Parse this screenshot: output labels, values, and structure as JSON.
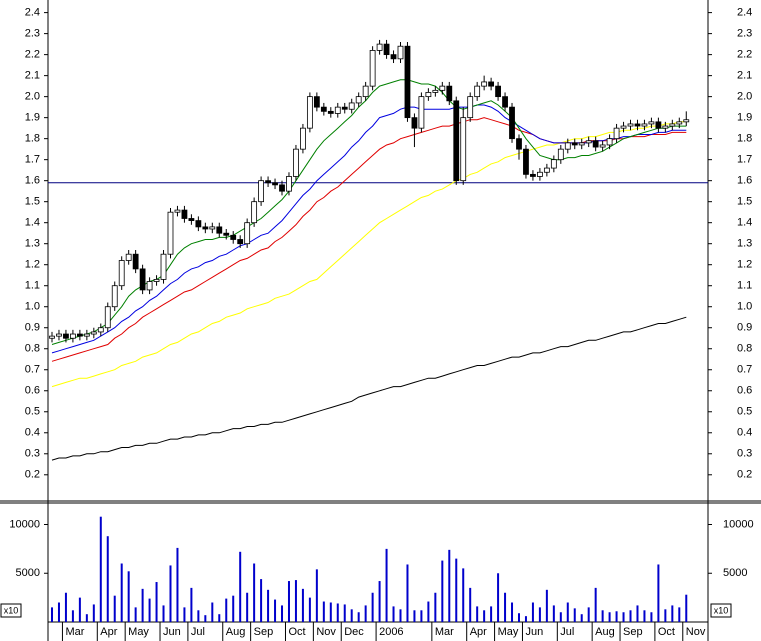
{
  "chart_data": [
    {
      "type": "candlestick",
      "open": [
        0.85,
        0.86,
        0.87,
        0.85,
        0.87,
        0.86,
        0.87,
        0.88,
        0.9,
        1.0,
        1.1,
        1.22,
        1.25,
        1.18,
        1.08,
        1.12,
        1.13,
        1.25,
        1.45,
        1.46,
        1.42,
        1.41,
        1.38,
        1.37,
        1.38,
        1.35,
        1.34,
        1.32,
        1.3,
        1.4,
        1.5,
        1.6,
        1.59,
        1.58,
        1.55,
        1.62,
        1.75,
        1.85,
        2.0,
        1.95,
        1.93,
        1.92,
        1.95,
        1.94,
        1.97,
        2.0,
        2.05,
        2.22,
        2.25,
        2.2,
        2.18,
        2.24,
        1.9,
        1.85,
        2.0,
        2.02,
        2.03,
        2.05,
        1.98,
        1.6,
        1.9,
        2.0,
        2.05,
        2.07,
        2.05,
        2.0,
        1.95,
        1.8,
        1.75,
        1.63,
        1.62,
        1.64,
        1.66,
        1.7,
        1.75,
        1.78,
        1.77,
        1.78,
        1.79,
        1.76,
        1.77,
        1.8,
        1.85,
        1.86,
        1.87,
        1.86,
        1.87,
        1.88,
        1.85,
        1.86,
        1.87,
        1.88
      ],
      "high": [
        0.88,
        0.89,
        0.89,
        0.89,
        0.89,
        0.89,
        0.9,
        0.92,
        1.02,
        1.12,
        1.24,
        1.27,
        1.27,
        1.2,
        1.14,
        1.15,
        1.27,
        1.47,
        1.48,
        1.48,
        1.44,
        1.43,
        1.4,
        1.4,
        1.4,
        1.37,
        1.36,
        1.34,
        1.42,
        1.52,
        1.62,
        1.62,
        1.61,
        1.6,
        1.64,
        1.77,
        1.87,
        2.02,
        2.02,
        1.97,
        1.95,
        1.97,
        1.97,
        1.99,
        2.02,
        2.07,
        2.24,
        2.27,
        2.27,
        2.22,
        2.26,
        2.26,
        1.92,
        2.02,
        2.04,
        2.05,
        2.07,
        2.07,
        2.0,
        1.95,
        2.02,
        2.07,
        2.1,
        2.09,
        2.07,
        2.02,
        1.97,
        1.82,
        1.77,
        1.65,
        1.66,
        1.68,
        1.72,
        1.77,
        1.8,
        1.8,
        1.8,
        1.81,
        1.81,
        1.79,
        1.82,
        1.87,
        1.88,
        1.89,
        1.89,
        1.89,
        1.9,
        1.9,
        1.88,
        1.89,
        1.9,
        1.93
      ],
      "low": [
        0.83,
        0.84,
        0.83,
        0.83,
        0.84,
        0.84,
        0.85,
        0.86,
        0.88,
        0.98,
        1.08,
        1.2,
        1.16,
        1.06,
        1.06,
        1.1,
        1.11,
        1.23,
        1.43,
        1.4,
        1.39,
        1.36,
        1.35,
        1.35,
        1.33,
        1.32,
        1.3,
        1.28,
        1.28,
        1.38,
        1.48,
        1.57,
        1.56,
        1.53,
        1.53,
        1.6,
        1.73,
        1.83,
        1.93,
        1.91,
        1.9,
        1.9,
        1.92,
        1.92,
        1.95,
        1.98,
        2.03,
        2.2,
        2.18,
        2.16,
        2.16,
        1.88,
        1.76,
        1.83,
        1.98,
        2.0,
        2.01,
        1.96,
        1.58,
        1.58,
        1.88,
        1.98,
        2.03,
        2.03,
        1.98,
        1.93,
        1.78,
        1.7,
        1.61,
        1.6,
        1.6,
        1.62,
        1.64,
        1.68,
        1.73,
        1.75,
        1.75,
        1.76,
        1.74,
        1.74,
        1.75,
        1.78,
        1.83,
        1.84,
        1.84,
        1.84,
        1.85,
        1.83,
        1.83,
        1.84,
        1.85,
        1.86
      ],
      "close": [
        0.86,
        0.87,
        0.85,
        0.87,
        0.86,
        0.87,
        0.88,
        0.9,
        1.0,
        1.1,
        1.22,
        1.25,
        1.18,
        1.08,
        1.12,
        1.13,
        1.25,
        1.45,
        1.46,
        1.42,
        1.41,
        1.38,
        1.37,
        1.38,
        1.35,
        1.34,
        1.32,
        1.3,
        1.4,
        1.5,
        1.6,
        1.59,
        1.58,
        1.55,
        1.62,
        1.75,
        1.85,
        2.0,
        1.95,
        1.93,
        1.92,
        1.95,
        1.94,
        1.97,
        2.0,
        2.05,
        2.22,
        2.25,
        2.2,
        2.18,
        2.24,
        1.9,
        1.85,
        2.0,
        2.02,
        2.03,
        2.05,
        1.98,
        1.6,
        1.9,
        2.0,
        2.05,
        2.07,
        2.05,
        2.0,
        1.95,
        1.8,
        1.75,
        1.63,
        1.62,
        1.64,
        1.66,
        1.7,
        1.75,
        1.78,
        1.77,
        1.78,
        1.79,
        1.76,
        1.77,
        1.8,
        1.85,
        1.86,
        1.87,
        1.86,
        1.87,
        1.88,
        1.85,
        1.86,
        1.87,
        1.88,
        1.89
      ],
      "series": [
        {
          "color": "#000000",
          "values": [
            0.27,
            0.28,
            0.28,
            0.29,
            0.29,
            0.3,
            0.3,
            0.31,
            0.31,
            0.32,
            0.33,
            0.33,
            0.34,
            0.34,
            0.35,
            0.35,
            0.36,
            0.37,
            0.37,
            0.38,
            0.38,
            0.39,
            0.39,
            0.4,
            0.4,
            0.41,
            0.42,
            0.42,
            0.43,
            0.43,
            0.44,
            0.44,
            0.45,
            0.45,
            0.46,
            0.47,
            0.48,
            0.49,
            0.5,
            0.51,
            0.52,
            0.53,
            0.54,
            0.55,
            0.57,
            0.58,
            0.59,
            0.6,
            0.61,
            0.62,
            0.62,
            0.63,
            0.64,
            0.65,
            0.66,
            0.66,
            0.67,
            0.68,
            0.69,
            0.7,
            0.71,
            0.72,
            0.72,
            0.73,
            0.74,
            0.75,
            0.76,
            0.76,
            0.77,
            0.78,
            0.78,
            0.79,
            0.8,
            0.81,
            0.81,
            0.82,
            0.83,
            0.84,
            0.84,
            0.85,
            0.86,
            0.87,
            0.88,
            0.88,
            0.89,
            0.9,
            0.91,
            0.92,
            0.92,
            0.93,
            0.94,
            0.95
          ]
        },
        {
          "color": "#ffff00",
          "values": [
            0.62,
            0.63,
            0.64,
            0.65,
            0.66,
            0.66,
            0.67,
            0.68,
            0.69,
            0.7,
            0.72,
            0.73,
            0.74,
            0.76,
            0.77,
            0.78,
            0.8,
            0.82,
            0.83,
            0.85,
            0.87,
            0.88,
            0.9,
            0.92,
            0.93,
            0.95,
            0.96,
            0.97,
            0.99,
            1.0,
            1.01,
            1.02,
            1.04,
            1.05,
            1.06,
            1.08,
            1.1,
            1.12,
            1.13,
            1.16,
            1.19,
            1.22,
            1.25,
            1.28,
            1.31,
            1.34,
            1.37,
            1.4,
            1.42,
            1.44,
            1.46,
            1.48,
            1.5,
            1.52,
            1.53,
            1.55,
            1.56,
            1.58,
            1.6,
            1.61,
            1.63,
            1.64,
            1.66,
            1.68,
            1.69,
            1.71,
            1.72,
            1.73,
            1.74,
            1.75,
            1.76,
            1.77,
            1.77,
            1.78,
            1.79,
            1.8,
            1.8,
            1.81,
            1.81,
            1.82,
            1.83,
            1.83,
            1.84,
            1.84,
            1.85,
            1.85,
            1.86,
            1.86,
            1.87,
            1.87,
            1.88,
            1.88
          ]
        },
        {
          "color": "#e00000",
          "values": [
            0.74,
            0.75,
            0.76,
            0.77,
            0.78,
            0.79,
            0.8,
            0.81,
            0.82,
            0.85,
            0.87,
            0.9,
            0.92,
            0.95,
            0.97,
            0.99,
            1.01,
            1.03,
            1.05,
            1.07,
            1.08,
            1.1,
            1.12,
            1.14,
            1.16,
            1.18,
            1.2,
            1.22,
            1.23,
            1.25,
            1.27,
            1.28,
            1.31,
            1.33,
            1.36,
            1.39,
            1.43,
            1.46,
            1.5,
            1.52,
            1.55,
            1.57,
            1.6,
            1.63,
            1.66,
            1.69,
            1.72,
            1.75,
            1.77,
            1.78,
            1.8,
            1.81,
            1.82,
            1.83,
            1.84,
            1.85,
            1.86,
            1.86,
            1.87,
            1.88,
            1.89,
            1.89,
            1.9,
            1.89,
            1.88,
            1.87,
            1.86,
            1.84,
            1.83,
            1.82,
            1.8,
            1.79,
            1.78,
            1.78,
            1.78,
            1.78,
            1.78,
            1.79,
            1.79,
            1.79,
            1.79,
            1.8,
            1.8,
            1.81,
            1.81,
            1.81,
            1.82,
            1.82,
            1.82,
            1.83,
            1.83,
            1.83
          ]
        },
        {
          "color": "#0000e0",
          "values": [
            0.78,
            0.79,
            0.8,
            0.81,
            0.82,
            0.83,
            0.84,
            0.86,
            0.88,
            0.9,
            0.93,
            0.95,
            0.98,
            1.0,
            1.03,
            1.05,
            1.08,
            1.11,
            1.13,
            1.16,
            1.18,
            1.19,
            1.21,
            1.22,
            1.24,
            1.25,
            1.27,
            1.29,
            1.3,
            1.32,
            1.34,
            1.35,
            1.38,
            1.41,
            1.45,
            1.49,
            1.53,
            1.56,
            1.6,
            1.63,
            1.66,
            1.69,
            1.72,
            1.76,
            1.79,
            1.83,
            1.86,
            1.9,
            1.91,
            1.92,
            1.94,
            1.95,
            1.95,
            1.94,
            1.94,
            1.94,
            1.94,
            1.94,
            1.95,
            1.95,
            1.95,
            1.96,
            1.96,
            1.95,
            1.93,
            1.9,
            1.88,
            1.86,
            1.84,
            1.82,
            1.8,
            1.79,
            1.78,
            1.78,
            1.78,
            1.78,
            1.78,
            1.78,
            1.79,
            1.79,
            1.8,
            1.8,
            1.81,
            1.81,
            1.82,
            1.82,
            1.82,
            1.83,
            1.83,
            1.84,
            1.84,
            1.84
          ]
        },
        {
          "color": "#008000",
          "values": [
            0.82,
            0.83,
            0.84,
            0.85,
            0.86,
            0.87,
            0.88,
            0.9,
            0.92,
            0.96,
            1.0,
            1.05,
            1.08,
            1.1,
            1.12,
            1.13,
            1.15,
            1.2,
            1.25,
            1.28,
            1.3,
            1.31,
            1.32,
            1.32,
            1.33,
            1.33,
            1.34,
            1.36,
            1.38,
            1.4,
            1.42,
            1.45,
            1.48,
            1.51,
            1.55,
            1.6,
            1.65,
            1.7,
            1.75,
            1.79,
            1.82,
            1.85,
            1.88,
            1.91,
            1.95,
            1.98,
            2.02,
            2.05,
            2.06,
            2.07,
            2.08,
            2.08,
            2.07,
            2.06,
            2.06,
            2.05,
            2.02,
            1.98,
            1.95,
            1.94,
            1.95,
            1.96,
            1.97,
            1.98,
            1.96,
            1.93,
            1.9,
            1.85,
            1.8,
            1.76,
            1.72,
            1.71,
            1.7,
            1.7,
            1.71,
            1.71,
            1.72,
            1.72,
            1.73,
            1.74,
            1.76,
            1.78,
            1.8,
            1.81,
            1.82,
            1.83,
            1.84,
            1.85,
            1.85,
            1.86,
            1.86,
            1.86
          ]
        }
      ],
      "hline": 1.59,
      "hline_color": "#000080",
      "ylim": [
        0.08,
        2.46
      ],
      "yticks": [
        0.2,
        0.3,
        0.4,
        0.5,
        0.6,
        0.7,
        0.8,
        0.9,
        {
          "value": 1,
          "label": "1.0"
        },
        1.1,
        1.2,
        1.3,
        1.4,
        1.5,
        1.6,
        1.7,
        1.8,
        1.9,
        {
          "value": 2,
          "label": "2.0"
        },
        2.1,
        2.2,
        2.3,
        2.4
      ]
    },
    {
      "type": "bar",
      "color": "#0000cc",
      "unit": "x10",
      "categories": [
        null,
        null,
        "Mar",
        null,
        null,
        null,
        null,
        "Apr",
        null,
        null,
        null,
        "May",
        null,
        null,
        null,
        null,
        "Jun",
        null,
        null,
        null,
        "Jul",
        null,
        null,
        null,
        null,
        "Aug",
        null,
        null,
        null,
        "Sep",
        null,
        null,
        null,
        null,
        "Oct",
        null,
        null,
        null,
        "Nov",
        null,
        null,
        null,
        "Dec",
        null,
        null,
        null,
        null,
        "2006",
        null,
        null,
        null,
        null,
        null,
        null,
        null,
        "Mar",
        null,
        null,
        null,
        null,
        "Apr",
        null,
        null,
        null,
        "May",
        null,
        null,
        null,
        "Jun",
        null,
        null,
        null,
        null,
        "Jul",
        null,
        null,
        null,
        null,
        "Aug",
        null,
        null,
        null,
        "Sep",
        null,
        null,
        null,
        null,
        "Oct",
        null,
        null,
        null,
        "Nov"
      ],
      "values": [
        1500,
        2000,
        3000,
        1200,
        2500,
        800,
        1800,
        10800,
        8800,
        2700,
        6000,
        5200,
        1500,
        3400,
        2400,
        4100,
        1700,
        5800,
        7600,
        1500,
        3500,
        1200,
        700,
        2000,
        800,
        2400,
        2700,
        7200,
        3000,
        6000,
        4400,
        3300,
        2300,
        1700,
        4200,
        4300,
        3400,
        2500,
        5400,
        2100,
        2000,
        1900,
        1800,
        1300,
        1000,
        1700,
        3000,
        4200,
        7500,
        1600,
        1300,
        5900,
        1200,
        1200,
        2100,
        3000,
        6300,
        7400,
        6500,
        5500,
        3500,
        1600,
        1200,
        1600,
        5000,
        3000,
        2000,
        900,
        600,
        2000,
        1500,
        3300,
        1700,
        1000,
        2000,
        1400,
        800,
        1500,
        3500,
        1200,
        1000,
        1100,
        1000,
        1200,
        1700,
        1200,
        1000,
        5900,
        1300,
        1700,
        1500,
        2800
      ],
      "ylim": [
        0,
        12000
      ],
      "yticks": [
        5000,
        10000
      ]
    }
  ]
}
